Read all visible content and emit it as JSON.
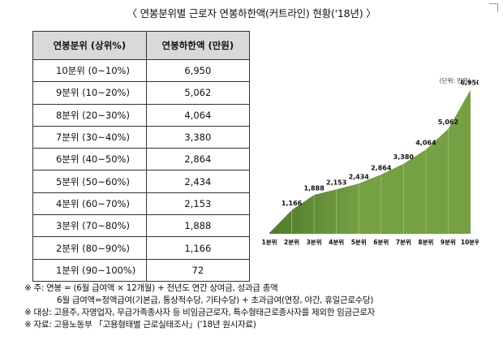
{
  "title": "〈 연봉분위별 근로자 연봉하한액(커트라인) 현황('18년) 〉",
  "table": {
    "headers": [
      "연봉분위 (상위%)",
      "연봉하한액 (만원)"
    ],
    "rows": [
      [
        "10분위 (0~10%)",
        "6,950"
      ],
      [
        "9분위 (10~20%)",
        "5,062"
      ],
      [
        "8분위 (20~30%)",
        "4,064"
      ],
      [
        "7분위 (30~40%)",
        "3,380"
      ],
      [
        "6분위 (40~50%)",
        "2,864"
      ],
      [
        "5분위 (50~60%)",
        "2,434"
      ],
      [
        "4분위 (60~70%)",
        "2,153"
      ],
      [
        "3분위 (70~80%)",
        "1,888"
      ],
      [
        "2분위 (80~90%)",
        "1,166"
      ],
      [
        "1분위 (90~100%)",
        "72"
      ]
    ]
  },
  "chart_data": {
    "type": "area",
    "unit_label": "(단위: 만원)",
    "categories": [
      "1분위",
      "2분위",
      "3분위",
      "4분위",
      "5분위",
      "6분위",
      "7분위",
      "8분위",
      "9분위",
      "10분위"
    ],
    "values": [
      72,
      1166,
      1888,
      2153,
      2434,
      2864,
      3380,
      4064,
      5062,
      6950
    ],
    "value_labels": [
      "",
      "1,166",
      "1,888",
      "2,153",
      "2,434",
      "2,864",
      "3,380",
      "4,064",
      "5,062",
      "6,950"
    ],
    "fill_color": "#76a044",
    "fill_dark_color": "#4e7a2b"
  },
  "notes": [
    "※ 주: 연봉 = (6월 급여액 × 12개월) + 전년도 연간 상여금, 성과급 총액",
    "6월 급여액=정액급여(기본급, 통상적수당, 기타수당) + 초과급여(연장, 야간, 휴일근로수당)",
    "※ 대상: 고용주, 자영업자, 무급가족종사자 등 비임금근로자, 특수형태근로종사자를 제외한 임금근로자",
    "※ 자료: 고용노동부 「고용형태별 근로실태조사」('18년 원시자료)"
  ]
}
